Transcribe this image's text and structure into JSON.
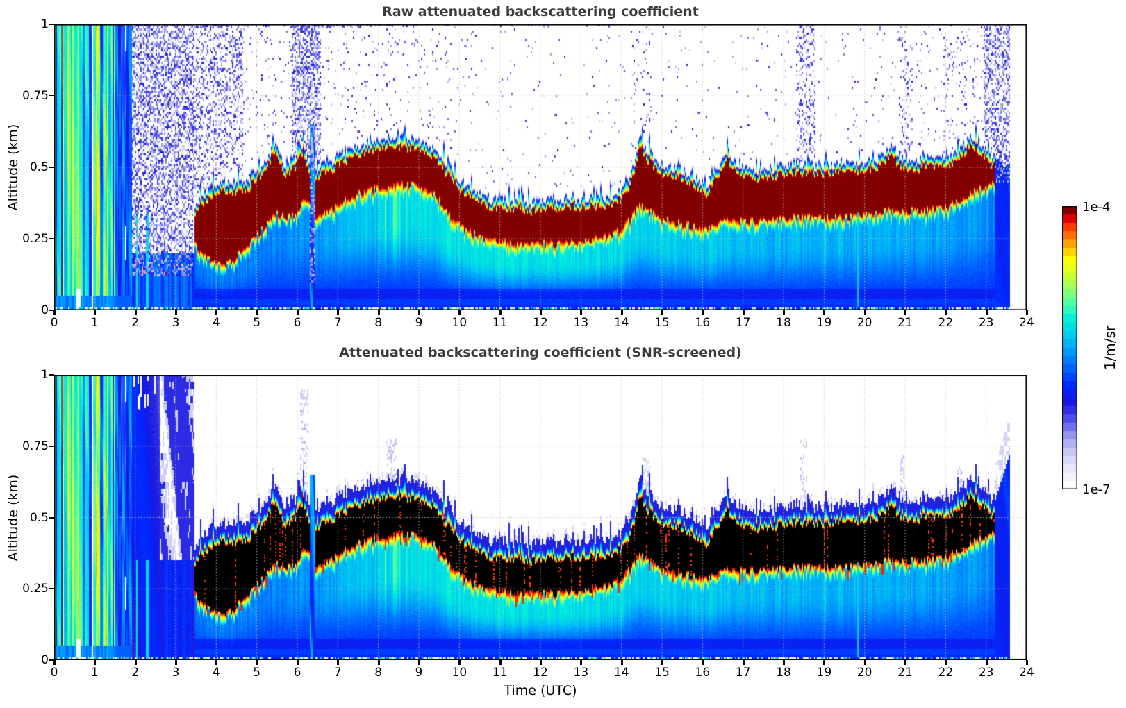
{
  "figure": {
    "background": "#ffffff"
  },
  "chart_data": {
    "type": "heatmap",
    "x": {
      "label": "Time (UTC)",
      "range": [
        0,
        24
      ],
      "ticks": [
        "0",
        "1",
        "2",
        "3",
        "4",
        "5",
        "6",
        "7",
        "8",
        "9",
        "10",
        "11",
        "12",
        "13",
        "14",
        "15",
        "16",
        "17",
        "18",
        "19",
        "20",
        "21",
        "22",
        "23",
        "24"
      ],
      "tick_values": [
        0,
        1,
        2,
        3,
        4,
        5,
        6,
        7,
        8,
        9,
        10,
        11,
        12,
        13,
        14,
        15,
        16,
        17,
        18,
        19,
        20,
        21,
        22,
        23,
        24
      ]
    },
    "y": {
      "label": "Altitude (km)",
      "range": [
        0,
        1
      ],
      "ticks": [
        "1",
        "0.75",
        "0.5",
        "0.25",
        "0"
      ],
      "tick_values": [
        1,
        0.75,
        0.5,
        0.25,
        0
      ]
    },
    "colorbar": {
      "top_label": "1e-4",
      "bottom_label": "1e-7",
      "unit": "1/m/sr",
      "segments": 34
    },
    "colormap": [
      [
        0.0,
        "#ffffff"
      ],
      [
        0.06,
        "#e9e9fb"
      ],
      [
        0.12,
        "#c9c9f5"
      ],
      [
        0.18,
        "#9898ee"
      ],
      [
        0.24,
        "#5050e8"
      ],
      [
        0.3,
        "#1818e0"
      ],
      [
        0.36,
        "#0028ff"
      ],
      [
        0.42,
        "#0060ff"
      ],
      [
        0.48,
        "#0095ff"
      ],
      [
        0.54,
        "#00c8f0"
      ],
      [
        0.6,
        "#00eedd"
      ],
      [
        0.66,
        "#4dffaa"
      ],
      [
        0.72,
        "#a0ff60"
      ],
      [
        0.78,
        "#e2ff20"
      ],
      [
        0.82,
        "#ffff00"
      ],
      [
        0.86,
        "#ffc000"
      ],
      [
        0.9,
        "#ff8000"
      ],
      [
        0.94,
        "#ff3800"
      ],
      [
        0.97,
        "#e00000"
      ],
      [
        1.0,
        "#820000"
      ]
    ],
    "panels": [
      {
        "title": "Raw attenuated backscattering coefficient",
        "core_style": "darkred",
        "screened": false
      },
      {
        "title": "Attenuated backscattering coefficient (SNR-screened)",
        "core_style": "black",
        "screened": true
      }
    ],
    "stripes_end_hour": 1.52,
    "bluestripe_end_hour": 1.93,
    "noise_region_end_hour": 3.45,
    "layer_start_hour": 3.42,
    "layer_end_hour": 23.2,
    "data_end_hour": 23.58,
    "layer_gaps": [
      [
        6.32,
        6.46
      ]
    ],
    "layer_keyframes": [
      [
        3.42,
        0.27,
        0.3
      ],
      [
        3.6,
        0.2,
        0.36
      ],
      [
        3.9,
        0.17,
        0.4
      ],
      [
        4.2,
        0.155,
        0.42
      ],
      [
        4.5,
        0.19,
        0.4
      ],
      [
        4.8,
        0.23,
        0.42
      ],
      [
        5.1,
        0.28,
        0.47
      ],
      [
        5.45,
        0.34,
        0.55
      ],
      [
        5.7,
        0.33,
        0.46
      ],
      [
        5.95,
        0.33,
        0.5
      ],
      [
        6.15,
        0.38,
        0.56
      ],
      [
        6.28,
        0.37,
        0.48
      ],
      [
        6.5,
        0.33,
        0.46
      ],
      [
        6.8,
        0.35,
        0.48
      ],
      [
        7.1,
        0.38,
        0.51
      ],
      [
        7.5,
        0.41,
        0.54
      ],
      [
        7.9,
        0.43,
        0.55
      ],
      [
        8.3,
        0.44,
        0.57
      ],
      [
        8.7,
        0.445,
        0.565
      ],
      [
        9.1,
        0.435,
        0.56
      ],
      [
        9.4,
        0.41,
        0.53
      ],
      [
        9.7,
        0.35,
        0.47
      ],
      [
        10.0,
        0.3,
        0.42
      ],
      [
        10.4,
        0.265,
        0.38
      ],
      [
        10.8,
        0.25,
        0.36
      ],
      [
        11.3,
        0.24,
        0.35
      ],
      [
        11.8,
        0.235,
        0.345
      ],
      [
        12.3,
        0.235,
        0.35
      ],
      [
        12.8,
        0.24,
        0.36
      ],
      [
        13.3,
        0.25,
        0.36
      ],
      [
        13.8,
        0.27,
        0.37
      ],
      [
        14.1,
        0.3,
        0.4
      ],
      [
        14.3,
        0.34,
        0.47
      ],
      [
        14.45,
        0.37,
        0.58
      ],
      [
        14.6,
        0.36,
        0.53
      ],
      [
        14.9,
        0.33,
        0.48
      ],
      [
        15.2,
        0.315,
        0.47
      ],
      [
        15.5,
        0.305,
        0.46
      ],
      [
        15.8,
        0.295,
        0.43
      ],
      [
        16.1,
        0.285,
        0.4
      ],
      [
        16.35,
        0.3,
        0.46
      ],
      [
        16.6,
        0.32,
        0.53
      ],
      [
        16.85,
        0.315,
        0.48
      ],
      [
        17.2,
        0.315,
        0.46
      ],
      [
        17.6,
        0.32,
        0.46
      ],
      [
        18.0,
        0.325,
        0.47
      ],
      [
        18.4,
        0.33,
        0.48
      ],
      [
        18.8,
        0.325,
        0.47
      ],
      [
        19.2,
        0.33,
        0.48
      ],
      [
        19.6,
        0.33,
        0.48
      ],
      [
        20.0,
        0.335,
        0.485
      ],
      [
        20.4,
        0.345,
        0.5
      ],
      [
        20.65,
        0.36,
        0.54
      ],
      [
        20.9,
        0.35,
        0.5
      ],
      [
        21.3,
        0.35,
        0.49
      ],
      [
        21.7,
        0.355,
        0.5
      ],
      [
        22.1,
        0.37,
        0.51
      ],
      [
        22.4,
        0.39,
        0.54
      ],
      [
        22.65,
        0.42,
        0.575
      ],
      [
        22.9,
        0.43,
        0.54
      ],
      [
        23.1,
        0.44,
        0.51
      ],
      [
        23.2,
        0.445,
        0.5
      ]
    ],
    "below_field_keyframes": [
      [
        0,
        0.44
      ],
      [
        3.5,
        0.45
      ],
      [
        5.5,
        0.46
      ],
      [
        6.5,
        0.48
      ],
      [
        7.5,
        0.53
      ],
      [
        8.5,
        0.57
      ],
      [
        9.5,
        0.58
      ],
      [
        10.5,
        0.58
      ],
      [
        12,
        0.58
      ],
      [
        13.5,
        0.57
      ],
      [
        14.5,
        0.55
      ],
      [
        15.5,
        0.55
      ],
      [
        16.5,
        0.54
      ],
      [
        17.5,
        0.52
      ],
      [
        18.5,
        0.52
      ],
      [
        19.5,
        0.52
      ],
      [
        20.5,
        0.51
      ],
      [
        21.5,
        0.5
      ],
      [
        22.5,
        0.49
      ],
      [
        23.6,
        0.46
      ]
    ],
    "speckle_density": [
      [
        1.93,
        3.45,
        0.5
      ],
      [
        3.45,
        4.65,
        0.33
      ],
      [
        4.65,
        5.85,
        0.05
      ],
      [
        5.85,
        6.6,
        0.5
      ],
      [
        6.6,
        9.8,
        0.04
      ],
      [
        9.8,
        14.2,
        0.015
      ],
      [
        14.2,
        14.75,
        0.07
      ],
      [
        14.75,
        18.3,
        0.015
      ],
      [
        18.3,
        18.8,
        0.3
      ],
      [
        18.8,
        20.85,
        0.02
      ],
      [
        20.85,
        21.2,
        0.18
      ],
      [
        21.2,
        21.95,
        0.04
      ],
      [
        21.95,
        22.5,
        0.1
      ],
      [
        22.5,
        22.95,
        0.05
      ],
      [
        22.95,
        23.58,
        0.42
      ]
    ],
    "plumes": [
      [
        6.17,
        0.1,
        0.95
      ],
      [
        8.3,
        0.12,
        0.78
      ],
      [
        14.6,
        0.05,
        0.72
      ],
      [
        18.5,
        0.08,
        0.78
      ],
      [
        20.95,
        0.06,
        0.72
      ],
      [
        22.35,
        0.05,
        0.68
      ],
      [
        23.05,
        0.05,
        0.6
      ]
    ],
    "white_gap_columns": [
      0.93,
      1.27
    ],
    "cyan_columns_low": [
      2.05,
      2.3
    ],
    "drop_line_hour": 19.82
  }
}
